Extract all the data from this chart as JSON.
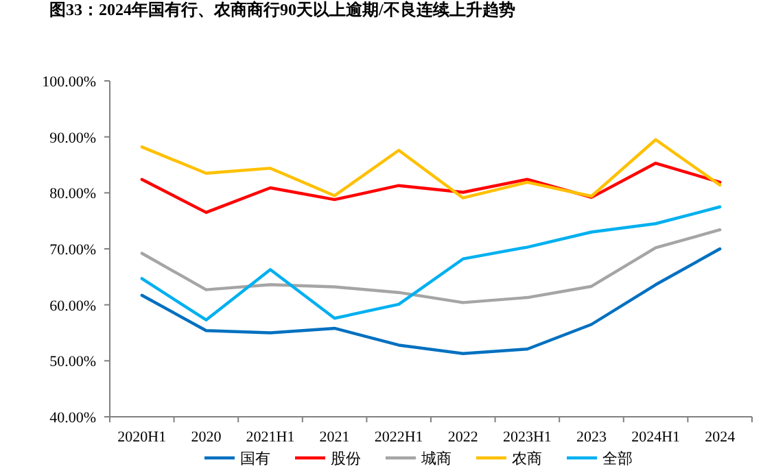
{
  "chart_data": {
    "type": "line",
    "title": "图33：2024年国有行、农商商行90天以上逾期/不良连续上升趋势",
    "categories": [
      "2020H1",
      "2020",
      "2021H1",
      "2021",
      "2022H1",
      "2022",
      "2023H1",
      "2023",
      "2024H1",
      "2024"
    ],
    "ylim": [
      40,
      100
    ],
    "yticks": [
      {
        "value": 40,
        "label": "40.00%"
      },
      {
        "value": 50,
        "label": "50.00%"
      },
      {
        "value": 60,
        "label": "60.00%"
      },
      {
        "value": 70,
        "label": "70.00%"
      },
      {
        "value": 80,
        "label": "80.00%"
      },
      {
        "value": 90,
        "label": "90.00%"
      },
      {
        "value": 100,
        "label": "100.00%"
      }
    ],
    "grid": false,
    "legend": "bottom",
    "marker": "none",
    "line_style": "solid",
    "series": [
      {
        "name": "国有",
        "color": "#0070c0",
        "values": [
          61.7,
          55.4,
          55.0,
          55.8,
          52.8,
          51.3,
          52.1,
          56.5,
          63.6,
          70.0
        ]
      },
      {
        "name": "股份",
        "color": "#ff0000",
        "values": [
          82.4,
          76.5,
          80.9,
          78.8,
          81.3,
          80.1,
          82.4,
          79.2,
          85.3,
          81.9
        ]
      },
      {
        "name": "城商",
        "color": "#a5a5a5",
        "values": [
          69.2,
          62.7,
          63.6,
          63.2,
          62.2,
          60.4,
          61.3,
          63.3,
          70.2,
          73.4
        ]
      },
      {
        "name": "农商",
        "color": "#ffc000",
        "values": [
          88.2,
          83.5,
          84.4,
          79.5,
          87.6,
          79.1,
          81.9,
          79.4,
          89.5,
          81.4
        ]
      },
      {
        "name": "全部",
        "color": "#00b0f0",
        "values": [
          64.7,
          57.3,
          66.3,
          57.6,
          60.1,
          68.2,
          70.3,
          73.0,
          74.5,
          77.5
        ]
      }
    ]
  }
}
